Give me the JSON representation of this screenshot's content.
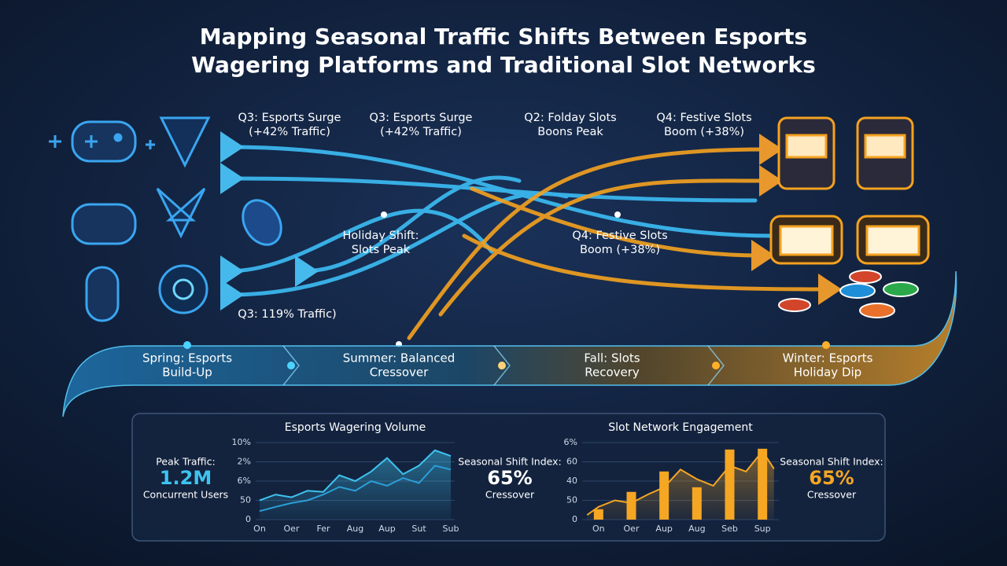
{
  "title": {
    "lines": [
      "Mapping Seasonal Traffic Shifts Between Esports",
      "Wagering Platforms and Traditional Slot Networks"
    ]
  },
  "flow_labels": [
    {
      "lines": [
        "Q3: Esports Surge",
        "(+42% Traffic)"
      ]
    },
    {
      "lines": [
        "Q3: Esports Surge",
        "(+42% Traffic)"
      ]
    },
    {
      "lines": [
        "Q2: Folday Slots",
        "Boons Peak"
      ]
    },
    {
      "lines": [
        "Q4: Festive Slots",
        "Boom (+38%)"
      ]
    },
    {
      "lines": [
        "Holiday Shift:",
        "Slots Peak"
      ]
    },
    {
      "lines": [
        "Q4: Festive Slots",
        "Boom (+38%)"
      ]
    },
    {
      "lines": [
        "Q3: 119% Traffic)"
      ]
    }
  ],
  "seasons": [
    {
      "lines": [
        "Spring: Esports",
        "Build-Up"
      ]
    },
    {
      "lines": [
        "Summer: Balanced",
        "Cressover"
      ]
    },
    {
      "lines": [
        "Fall: Slots",
        "Recovery"
      ]
    },
    {
      "lines": [
        "Winter: Esports",
        "Holiday Dip"
      ]
    }
  ],
  "panel": {
    "left": {
      "label": "Peak Traffic:",
      "value": "1.2M",
      "sub": "Concurrent Users"
    },
    "middle": {
      "label": "Seasonal Shift Index:",
      "value": "65%",
      "sub": "Cressover"
    },
    "right": {
      "label": "Seasonal Shift Index:",
      "value": "65%",
      "sub": "Cressover"
    }
  },
  "chart_data": [
    {
      "type": "line",
      "title": "Esports Wagering Volume",
      "xlim": [
        0,
        12
      ],
      "xticks": [
        {
          "value": 0,
          "label": "On"
        },
        {
          "value": 2,
          "label": "Oer"
        },
        {
          "value": 4,
          "label": "Fer"
        },
        {
          "value": 6,
          "label": "Aug"
        },
        {
          "value": 8,
          "label": "Aup"
        },
        {
          "value": 10,
          "label": "Sut"
        },
        {
          "value": 12,
          "label": "Sub"
        }
      ],
      "ylim": [
        0,
        200
      ],
      "yticks": [
        0,
        50,
        {
          "value": 100,
          "label": "6%"
        },
        {
          "value": 150,
          "label": "2%"
        },
        {
          "value": 200,
          "label": "10%"
        }
      ],
      "series": [
        {
          "color": "#3fc3f0",
          "x": [
            0,
            1,
            2,
            3,
            4,
            5,
            6,
            7,
            8,
            9,
            10,
            11,
            12
          ],
          "values": [
            50,
            65,
            58,
            75,
            72,
            115,
            100,
            125,
            160,
            118,
            140,
            180,
            165
          ]
        },
        {
          "color": "#2a9fd8",
          "x": [
            0,
            1,
            2,
            3,
            4,
            5,
            6,
            7,
            8,
            9,
            10,
            11,
            12
          ],
          "values": [
            22,
            33,
            43,
            50,
            65,
            85,
            75,
            100,
            88,
            108,
            95,
            140,
            130
          ]
        }
      ]
    },
    {
      "type": "bar",
      "title": "Slot Network Engagement",
      "categories": [
        "On",
        "Oer",
        "Aup",
        "Aug",
        "Seb",
        "Sup"
      ],
      "values": [
        27,
        72,
        125,
        84,
        182,
        184
      ],
      "color": "#f5a623",
      "ylim": [
        0,
        200
      ],
      "yticks": [
        0,
        50,
        {
          "value": 100,
          "label": "40"
        },
        {
          "value": 150,
          "label": "60"
        },
        {
          "value": 200,
          "label": "6%"
        }
      ],
      "series": [
        {
          "color": "#f5a623",
          "x": [
            -0.35,
            0,
            0.5,
            1,
            1.5,
            2,
            2.5,
            3,
            3.5,
            4,
            4.5,
            5,
            5.35
          ],
          "values": [
            12,
            33,
            50,
            43,
            65,
            84,
            130,
            105,
            88,
            140,
            125,
            178,
            132
          ]
        }
      ]
    }
  ]
}
